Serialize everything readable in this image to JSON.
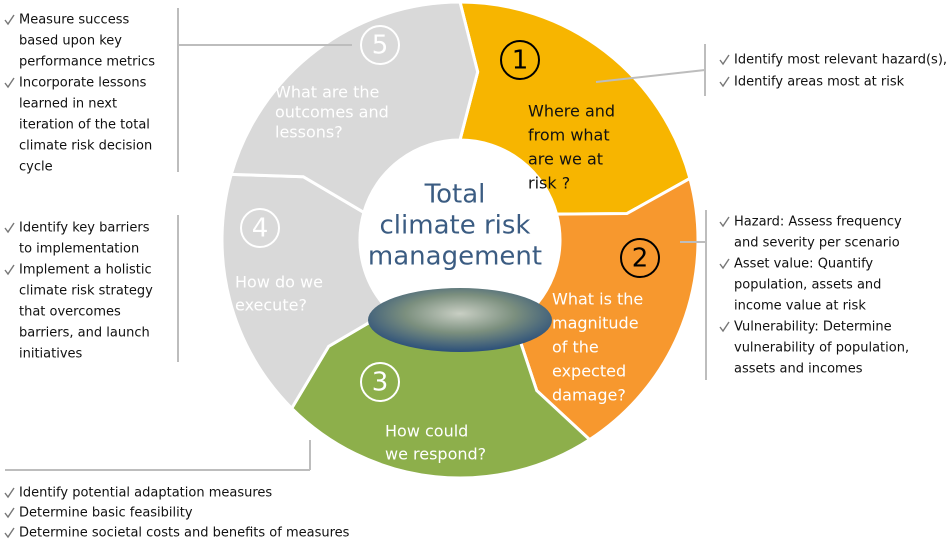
{
  "center": [
    "Total",
    "climate risk",
    "management"
  ],
  "steps": [
    {
      "number": "1",
      "color": "#f7b500",
      "question": [
        "Where and",
        "from what",
        "are we at",
        "risk ?"
      ],
      "bullets": [
        [
          "Identify most relevant hazard(s),"
        ],
        [
          "Identify areas most at risk"
        ]
      ]
    },
    {
      "number": "2",
      "color": "#f7982e",
      "question": [
        "What is the",
        "magnitude",
        "of the",
        "expected",
        "damage?"
      ],
      "bullets": [
        [
          "Hazard: Assess frequency",
          "and severity per scenario"
        ],
        [
          "Asset value: Quantify",
          "population, assets and",
          "income value at risk"
        ],
        [
          "Vulnerability: Determine",
          "vulnerability of population,",
          "assets and incomes"
        ]
      ]
    },
    {
      "number": "3",
      "color": "#8daf4b",
      "question": [
        "How could",
        "we respond?"
      ],
      "bullets": [
        [
          "Identify potential adaptation measures"
        ],
        [
          "Determine basic feasibility"
        ],
        [
          "Determine societal costs and benefits of measures"
        ]
      ]
    },
    {
      "number": "4",
      "color": "#d9d9d9",
      "question": [
        "How do we",
        "execute?"
      ],
      "bullets": [
        [
          "Identify key barriers",
          "to implementation"
        ],
        [
          "Implement a holistic",
          "climate risk strategy",
          "that overcomes",
          "barriers, and launch",
          "initiatives"
        ]
      ]
    },
    {
      "number": "5",
      "color": "#d9d9d9",
      "question": [
        "What are the",
        "outcomes and",
        "lessons?"
      ],
      "bullets": [
        [
          "Measure success",
          "based upon key",
          "performance metrics"
        ],
        [
          "Incorporate lessons",
          "learned in next",
          "iteration of the total",
          "climate risk decision",
          "cycle"
        ]
      ]
    }
  ]
}
